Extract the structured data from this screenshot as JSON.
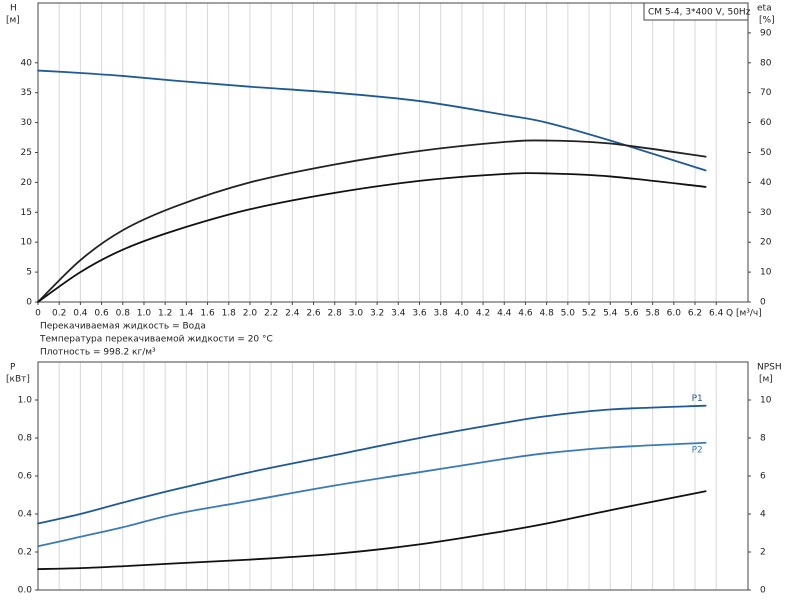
{
  "chart_data": [
    {
      "type": "line",
      "title": "CM 5-4, 3*400 V, 50Hz",
      "x_label": "Q [м³/ч]",
      "y_label": "H",
      "y_unit": "[м]",
      "y2_label": "eta",
      "y2_unit": "[%]",
      "notes": [
        "Перекачиваемая жидкость = Вода",
        "Температура перекачиваемой жидкости = 20 °C",
        "Плотность = 998.2 кг/м³"
      ],
      "x": [
        0,
        0.4,
        0.8,
        1.3,
        2.0,
        2.8,
        3.6,
        4.4,
        4.8,
        5.4,
        6.3
      ],
      "xlim": [
        0,
        6.7
      ],
      "xticks": [
        0,
        0.2,
        0.4,
        0.6,
        0.8,
        {
          "value": 1,
          "label": "1.0"
        },
        1.2,
        1.4,
        1.6,
        1.8,
        {
          "value": 2,
          "label": "2.0"
        },
        2.2,
        2.4,
        2.6,
        2.8,
        {
          "value": 3,
          "label": "3.0"
        },
        3.2,
        3.4,
        3.6,
        3.8,
        {
          "value": 4,
          "label": "4.0"
        },
        4.2,
        4.4,
        4.6,
        4.8,
        {
          "value": 5,
          "label": "5.0"
        },
        5.2,
        5.4,
        5.6,
        5.8,
        {
          "value": 6,
          "label": "6.0"
        },
        6.2,
        6.4
      ],
      "ylim": [
        0,
        50
      ],
      "yticks": [
        0,
        5,
        10,
        15,
        20,
        25,
        30,
        35,
        40
      ],
      "y2lim": [
        0,
        100
      ],
      "y2ticks": [
        0,
        10,
        20,
        30,
        40,
        50,
        60,
        70,
        80,
        90
      ],
      "grid": "x",
      "series": [
        {
          "color": "#1f5a96",
          "values": [
            38.7,
            38.3,
            37.8,
            37.0,
            36.0,
            35.0,
            33.6,
            31.3,
            30.0,
            27.0,
            22.0
          ]
        },
        {
          "color": "#222222",
          "axis": "y2",
          "values": [
            0,
            14,
            24,
            32,
            40,
            46,
            50.5,
            53.5,
            54,
            53,
            48.6
          ]
        },
        {
          "color": "#111111",
          "axis": "y2",
          "values": [
            0,
            10,
            17.5,
            24,
            31,
            36.5,
            40.5,
            42.8,
            43,
            42,
            38.5
          ]
        }
      ]
    },
    {
      "type": "line",
      "y_label": "P",
      "y_unit": "[кВт]",
      "y2_label": "NPSH",
      "y2_unit": "[м]",
      "x": [
        0,
        0.4,
        0.8,
        1.3,
        2.0,
        2.8,
        3.6,
        4.4,
        4.8,
        5.4,
        6.3
      ],
      "xlim": [
        0,
        6.7
      ],
      "ylim": [
        0,
        1.2
      ],
      "yticks": [
        {
          "value": 0,
          "label": "0.0"
        },
        0.2,
        0.4,
        0.6,
        0.8,
        {
          "value": 1,
          "label": "1.0"
        }
      ],
      "y2lim": [
        0,
        12
      ],
      "y2ticks": [
        0,
        2,
        4,
        6,
        8,
        10
      ],
      "grid": "x",
      "series": [
        {
          "name": "P1",
          "color": "#1f5a96",
          "values": [
            0.35,
            0.4,
            0.46,
            0.53,
            0.62,
            0.71,
            0.8,
            0.88,
            0.915,
            0.95,
            0.97
          ]
        },
        {
          "name": "P2",
          "color": "#3a7ab8",
          "values": [
            0.23,
            0.28,
            0.33,
            0.4,
            0.47,
            0.55,
            0.62,
            0.69,
            0.72,
            0.75,
            0.775
          ]
        },
        {
          "color": "#111111",
          "axis": "y2",
          "values": [
            1.1,
            1.15,
            1.25,
            1.4,
            1.6,
            1.9,
            2.4,
            3.1,
            3.5,
            4.2,
            5.2
          ]
        }
      ]
    }
  ]
}
